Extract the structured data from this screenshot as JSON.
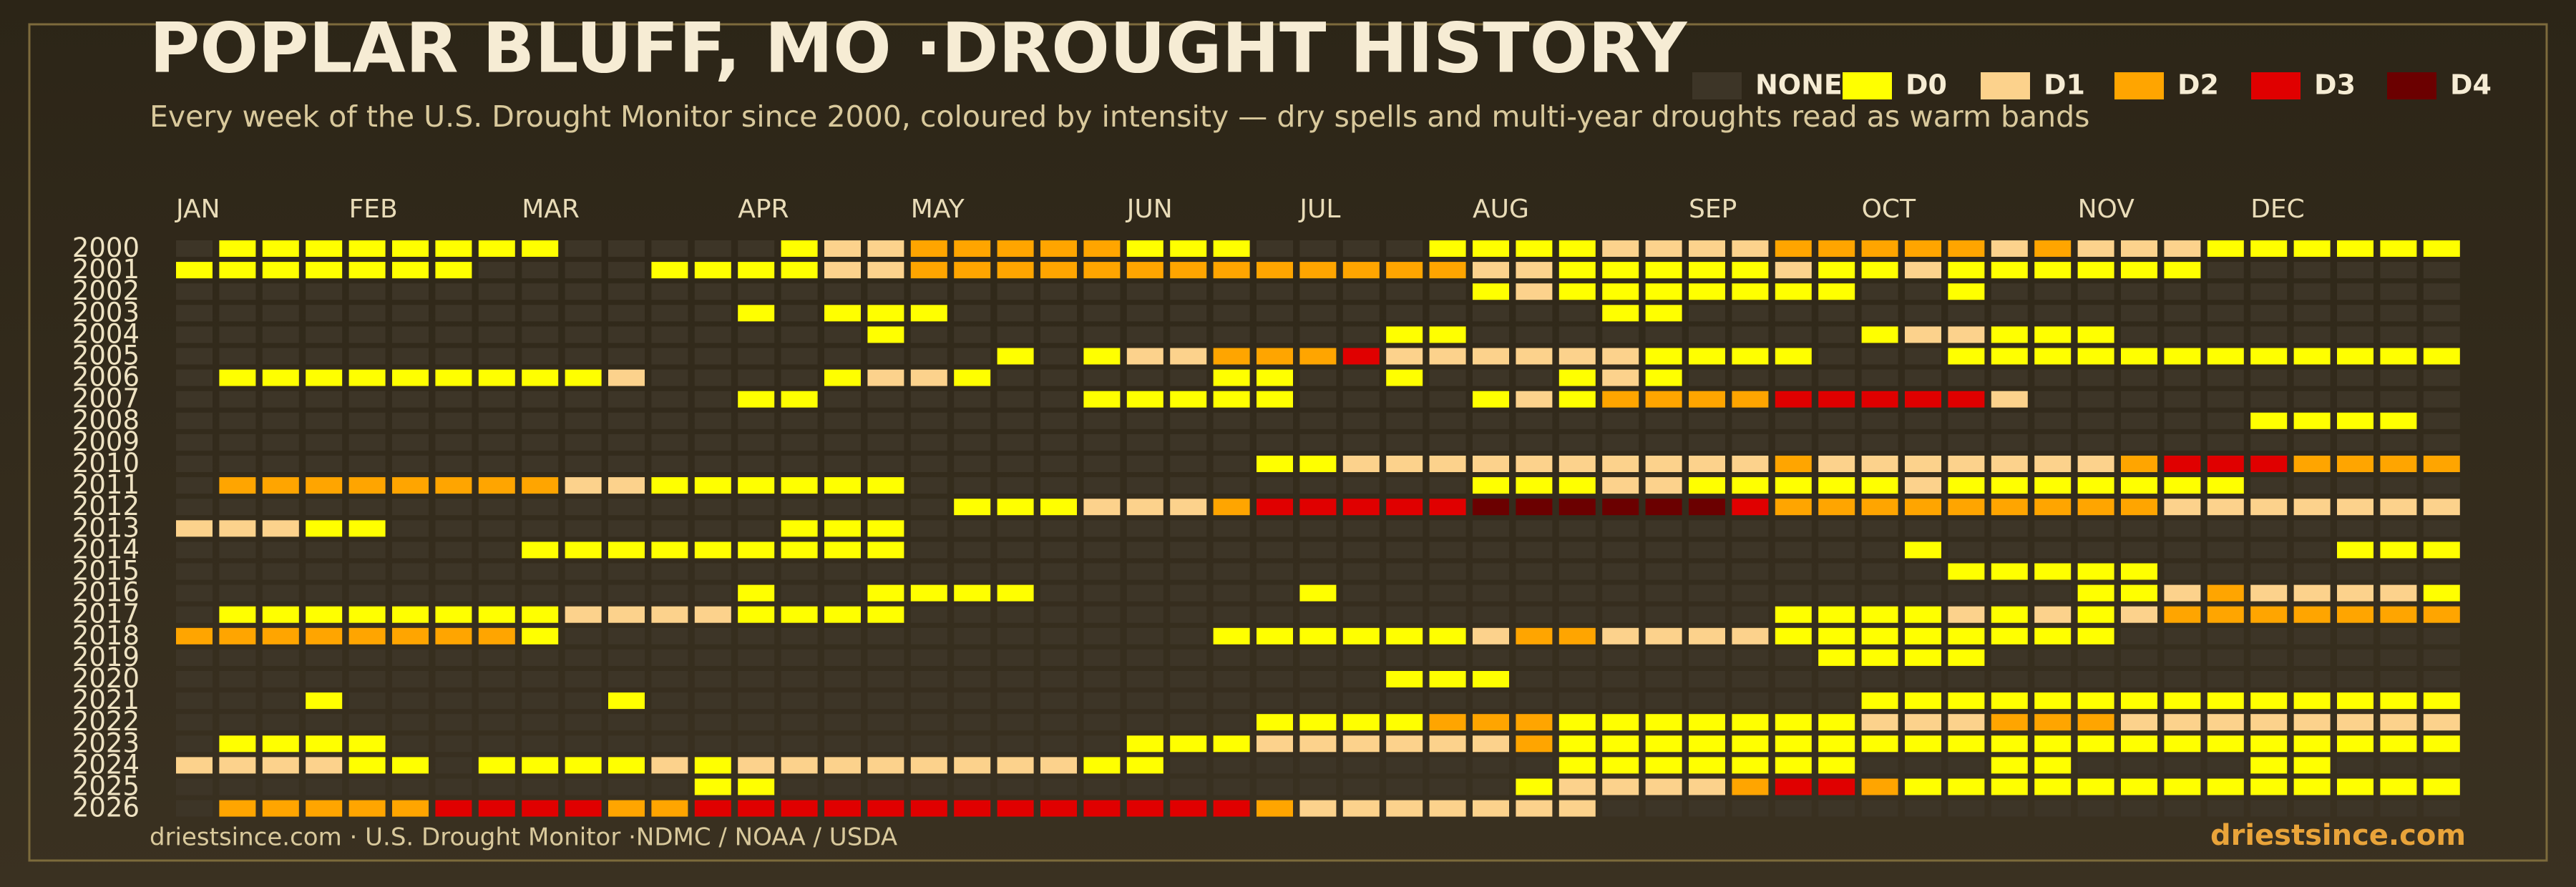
{
  "chart_data": {
    "type": "heatmap",
    "title": "POPLAR BLUFF, MO ·DROUGHT HISTORY",
    "subtitle": "Every week of the U.S. Drought Monitor since 2000, coloured by intensity — dry spells and multi-year droughts read as warm bands",
    "months": [
      "JAN",
      "FEB",
      "MAR",
      "APR",
      "MAY",
      "JUN",
      "JUL",
      "AUG",
      "SEP",
      "OCT",
      "NOV",
      "DEC"
    ],
    "categories": [
      "2000",
      "2001",
      "2002",
      "2003",
      "2004",
      "2005",
      "2006",
      "2007",
      "2008",
      "2009",
      "2010",
      "2011",
      "2012",
      "2013",
      "2014",
      "2015",
      "2016",
      "2017",
      "2018",
      "2019",
      "2020",
      "2021",
      "2022",
      "2023",
      "2024",
      "2025",
      "2026"
    ],
    "levels": [
      {
        "name": "NONE",
        "color": "#3d3527"
      },
      {
        "name": "D0",
        "color": "#ffff00"
      },
      {
        "name": "D1",
        "color": "#fcd28c"
      },
      {
        "name": "D2",
        "color": "#ffa500"
      },
      {
        "name": "D3",
        "color": "#e00000"
      },
      {
        "name": "D4",
        "color": "#6b0000"
      }
    ],
    "values": [
      [
        0,
        1,
        1,
        1,
        1,
        1,
        1,
        1,
        1,
        0,
        0,
        0,
        0,
        0,
        1,
        2,
        2,
        3,
        3,
        3,
        3,
        3,
        1,
        1,
        1,
        0,
        0,
        0,
        0,
        1,
        1,
        1,
        1,
        2,
        2,
        2,
        2,
        3,
        3,
        3,
        3,
        3,
        2,
        3,
        2,
        2,
        2,
        1,
        1,
        1,
        1,
        1,
        1
      ],
      [
        1,
        1,
        1,
        1,
        1,
        1,
        1,
        0,
        0,
        0,
        0,
        1,
        1,
        1,
        1,
        2,
        2,
        3,
        3,
        3,
        3,
        3,
        3,
        3,
        3,
        3,
        3,
        3,
        3,
        3,
        2,
        2,
        1,
        1,
        1,
        1,
        1,
        2,
        1,
        1,
        2,
        1,
        1,
        1,
        1,
        1,
        1,
        0,
        0,
        0,
        0,
        0,
        0
      ],
      [
        0,
        0,
        0,
        0,
        0,
        0,
        0,
        0,
        0,
        0,
        0,
        0,
        0,
        0,
        0,
        0,
        0,
        0,
        0,
        0,
        0,
        0,
        0,
        0,
        0,
        0,
        0,
        0,
        0,
        0,
        1,
        2,
        1,
        1,
        1,
        1,
        1,
        1,
        1,
        0,
        0,
        1,
        0,
        0,
        0,
        0,
        0,
        0,
        0,
        0,
        0,
        0,
        0
      ],
      [
        0,
        0,
        0,
        0,
        0,
        0,
        0,
        0,
        0,
        0,
        0,
        0,
        0,
        1,
        0,
        1,
        1,
        1,
        0,
        0,
        0,
        0,
        0,
        0,
        0,
        0,
        0,
        0,
        0,
        0,
        0,
        0,
        0,
        1,
        1,
        0,
        0,
        0,
        0,
        0,
        0,
        0,
        0,
        0,
        0,
        0,
        0,
        0,
        0,
        0,
        0,
        0,
        0
      ],
      [
        0,
        0,
        0,
        0,
        0,
        0,
        0,
        0,
        0,
        0,
        0,
        0,
        0,
        0,
        0,
        0,
        1,
        0,
        0,
        0,
        0,
        0,
        0,
        0,
        0,
        0,
        0,
        0,
        1,
        1,
        0,
        0,
        0,
        0,
        0,
        0,
        0,
        0,
        0,
        1,
        2,
        2,
        1,
        1,
        1,
        0,
        0,
        0,
        0,
        0,
        0,
        0,
        0
      ],
      [
        0,
        0,
        0,
        0,
        0,
        0,
        0,
        0,
        0,
        0,
        0,
        0,
        0,
        0,
        0,
        0,
        0,
        0,
        0,
        1,
        0,
        1,
        2,
        2,
        3,
        3,
        3,
        4,
        2,
        2,
        2,
        2,
        2,
        2,
        1,
        1,
        1,
        1,
        0,
        0,
        0,
        1,
        1,
        1,
        1,
        1,
        1,
        1,
        1,
        1,
        1,
        1,
        1
      ],
      [
        0,
        1,
        1,
        1,
        1,
        1,
        1,
        1,
        1,
        1,
        2,
        0,
        0,
        0,
        0,
        1,
        2,
        2,
        1,
        0,
        0,
        0,
        0,
        0,
        1,
        1,
        0,
        0,
        1,
        0,
        0,
        0,
        1,
        2,
        1,
        0,
        0,
        0,
        0,
        0,
        0,
        0,
        0,
        0,
        0,
        0,
        0,
        0,
        0,
        0,
        0,
        0,
        0
      ],
      [
        0,
        0,
        0,
        0,
        0,
        0,
        0,
        0,
        0,
        0,
        0,
        0,
        0,
        1,
        1,
        0,
        0,
        0,
        0,
        0,
        0,
        1,
        1,
        1,
        1,
        1,
        0,
        0,
        0,
        0,
        1,
        2,
        1,
        3,
        3,
        3,
        3,
        4,
        4,
        4,
        4,
        4,
        2,
        0,
        0,
        0,
        0,
        0,
        0,
        0,
        0,
        0,
        0
      ],
      [
        0,
        0,
        0,
        0,
        0,
        0,
        0,
        0,
        0,
        0,
        0,
        0,
        0,
        0,
        0,
        0,
        0,
        0,
        0,
        0,
        0,
        0,
        0,
        0,
        0,
        0,
        0,
        0,
        0,
        0,
        0,
        0,
        0,
        0,
        0,
        0,
        0,
        0,
        0,
        0,
        0,
        0,
        0,
        0,
        0,
        0,
        0,
        0,
        1,
        1,
        1,
        1,
        0
      ],
      [
        0,
        0,
        0,
        0,
        0,
        0,
        0,
        0,
        0,
        0,
        0,
        0,
        0,
        0,
        0,
        0,
        0,
        0,
        0,
        0,
        0,
        0,
        0,
        0,
        0,
        0,
        0,
        0,
        0,
        0,
        0,
        0,
        0,
        0,
        0,
        0,
        0,
        0,
        0,
        0,
        0,
        0,
        0,
        0,
        0,
        0,
        0,
        0,
        0,
        0,
        0,
        0,
        0
      ],
      [
        0,
        0,
        0,
        0,
        0,
        0,
        0,
        0,
        0,
        0,
        0,
        0,
        0,
        0,
        0,
        0,
        0,
        0,
        0,
        0,
        0,
        0,
        0,
        0,
        0,
        1,
        1,
        2,
        2,
        2,
        2,
        2,
        2,
        2,
        2,
        2,
        2,
        3,
        2,
        2,
        2,
        2,
        2,
        2,
        2,
        3,
        4,
        4,
        4,
        3,
        3,
        3,
        3
      ],
      [
        0,
        3,
        3,
        3,
        3,
        3,
        3,
        3,
        3,
        2,
        2,
        1,
        1,
        1,
        1,
        1,
        1,
        0,
        0,
        0,
        0,
        0,
        0,
        0,
        0,
        0,
        0,
        0,
        0,
        0,
        1,
        1,
        1,
        2,
        2,
        1,
        1,
        1,
        1,
        1,
        2,
        1,
        1,
        1,
        1,
        1,
        1,
        1,
        0,
        0,
        0,
        0,
        0
      ],
      [
        0,
        0,
        0,
        0,
        0,
        0,
        0,
        0,
        0,
        0,
        0,
        0,
        0,
        0,
        0,
        0,
        0,
        0,
        1,
        1,
        1,
        2,
        2,
        2,
        3,
        4,
        4,
        4,
        4,
        4,
        5,
        5,
        5,
        5,
        5,
        5,
        4,
        3,
        3,
        3,
        3,
        3,
        3,
        3,
        3,
        3,
        2,
        2,
        2,
        2,
        2,
        2,
        2
      ],
      [
        2,
        2,
        2,
        1,
        1,
        0,
        0,
        0,
        0,
        0,
        0,
        0,
        0,
        0,
        1,
        1,
        1,
        0,
        0,
        0,
        0,
        0,
        0,
        0,
        0,
        0,
        0,
        0,
        0,
        0,
        0,
        0,
        0,
        0,
        0,
        0,
        0,
        0,
        0,
        0,
        0,
        0,
        0,
        0,
        0,
        0,
        0,
        0,
        0,
        0,
        0,
        0,
        0
      ],
      [
        0,
        0,
        0,
        0,
        0,
        0,
        0,
        0,
        1,
        1,
        1,
        1,
        1,
        1,
        1,
        1,
        1,
        0,
        0,
        0,
        0,
        0,
        0,
        0,
        0,
        0,
        0,
        0,
        0,
        0,
        0,
        0,
        0,
        0,
        0,
        0,
        0,
        0,
        0,
        0,
        1,
        0,
        0,
        0,
        0,
        0,
        0,
        0,
        0,
        0,
        1,
        1,
        1
      ],
      [
        0,
        0,
        0,
        0,
        0,
        0,
        0,
        0,
        0,
        0,
        0,
        0,
        0,
        0,
        0,
        0,
        0,
        0,
        0,
        0,
        0,
        0,
        0,
        0,
        0,
        0,
        0,
        0,
        0,
        0,
        0,
        0,
        0,
        0,
        0,
        0,
        0,
        0,
        0,
        0,
        0,
        1,
        1,
        1,
        1,
        1,
        0,
        0,
        0,
        0,
        0,
        0,
        0
      ],
      [
        0,
        0,
        0,
        0,
        0,
        0,
        0,
        0,
        0,
        0,
        0,
        0,
        0,
        1,
        0,
        0,
        1,
        1,
        1,
        1,
        0,
        0,
        0,
        0,
        0,
        0,
        1,
        0,
        0,
        0,
        0,
        0,
        0,
        0,
        0,
        0,
        0,
        0,
        0,
        0,
        0,
        0,
        0,
        0,
        1,
        1,
        2,
        3,
        2,
        2,
        2,
        2,
        1
      ],
      [
        0,
        1,
        1,
        1,
        1,
        1,
        1,
        1,
        1,
        2,
        2,
        2,
        2,
        1,
        1,
        1,
        1,
        0,
        0,
        0,
        0,
        0,
        0,
        0,
        0,
        0,
        0,
        0,
        0,
        0,
        0,
        0,
        0,
        0,
        0,
        0,
        0,
        1,
        1,
        1,
        1,
        2,
        1,
        2,
        1,
        2,
        3,
        3,
        3,
        3,
        3,
        3,
        3
      ],
      [
        3,
        3,
        3,
        3,
        3,
        3,
        3,
        3,
        1,
        0,
        0,
        0,
        0,
        0,
        0,
        0,
        0,
        0,
        0,
        0,
        0,
        0,
        0,
        0,
        1,
        1,
        1,
        1,
        1,
        1,
        2,
        3,
        3,
        2,
        2,
        2,
        2,
        1,
        1,
        1,
        1,
        1,
        1,
        1,
        1,
        0,
        0,
        0,
        0,
        0,
        0,
        0,
        0
      ],
      [
        0,
        0,
        0,
        0,
        0,
        0,
        0,
        0,
        0,
        0,
        0,
        0,
        0,
        0,
        0,
        0,
        0,
        0,
        0,
        0,
        0,
        0,
        0,
        0,
        0,
        0,
        0,
        0,
        0,
        0,
        0,
        0,
        0,
        0,
        0,
        0,
        0,
        0,
        1,
        1,
        1,
        1,
        0,
        0,
        0,
        0,
        0,
        0,
        0,
        0,
        0,
        0,
        0
      ],
      [
        0,
        0,
        0,
        0,
        0,
        0,
        0,
        0,
        0,
        0,
        0,
        0,
        0,
        0,
        0,
        0,
        0,
        0,
        0,
        0,
        0,
        0,
        0,
        0,
        0,
        0,
        0,
        0,
        1,
        1,
        1,
        0,
        0,
        0,
        0,
        0,
        0,
        0,
        0,
        0,
        0,
        0,
        0,
        0,
        0,
        0,
        0,
        0,
        0,
        0,
        0,
        0,
        0
      ],
      [
        0,
        0,
        0,
        1,
        0,
        0,
        0,
        0,
        0,
        0,
        1,
        0,
        0,
        0,
        0,
        0,
        0,
        0,
        0,
        0,
        0,
        0,
        0,
        0,
        0,
        0,
        0,
        0,
        0,
        0,
        0,
        0,
        0,
        0,
        0,
        0,
        0,
        0,
        0,
        1,
        1,
        1,
        1,
        1,
        1,
        1,
        1,
        1,
        1,
        1,
        1,
        1,
        1
      ],
      [
        0,
        0,
        0,
        0,
        0,
        0,
        0,
        0,
        0,
        0,
        0,
        0,
        0,
        0,
        0,
        0,
        0,
        0,
        0,
        0,
        0,
        0,
        0,
        0,
        0,
        1,
        1,
        1,
        1,
        3,
        3,
        3,
        1,
        1,
        1,
        1,
        1,
        1,
        1,
        2,
        2,
        2,
        3,
        3,
        3,
        2,
        2,
        2,
        2,
        2,
        2,
        2,
        2
      ],
      [
        0,
        1,
        1,
        1,
        1,
        0,
        0,
        0,
        0,
        0,
        0,
        0,
        0,
        0,
        0,
        0,
        0,
        0,
        0,
        0,
        0,
        0,
        1,
        1,
        1,
        2,
        2,
        2,
        2,
        2,
        2,
        3,
        1,
        1,
        1,
        1,
        1,
        1,
        1,
        1,
        1,
        1,
        1,
        1,
        1,
        1,
        1,
        1,
        1,
        1,
        1,
        1,
        1
      ],
      [
        2,
        2,
        2,
        2,
        1,
        1,
        0,
        1,
        1,
        1,
        1,
        2,
        1,
        2,
        2,
        2,
        2,
        2,
        2,
        2,
        2,
        1,
        1,
        0,
        0,
        0,
        0,
        0,
        0,
        0,
        0,
        0,
        1,
        1,
        1,
        1,
        1,
        1,
        1,
        0,
        0,
        0,
        1,
        1,
        0,
        0,
        0,
        0,
        1,
        1,
        0,
        0,
        0
      ],
      [
        0,
        0,
        0,
        0,
        0,
        0,
        0,
        0,
        0,
        0,
        0,
        0,
        1,
        1,
        0,
        0,
        0,
        0,
        0,
        0,
        0,
        0,
        0,
        0,
        0,
        0,
        0,
        0,
        0,
        0,
        0,
        1,
        2,
        2,
        2,
        2,
        3,
        4,
        4,
        3,
        1,
        1,
        1,
        1,
        1,
        1,
        1,
        1,
        1,
        1,
        1,
        1,
        1
      ],
      [
        0,
        3,
        3,
        3,
        3,
        3,
        4,
        4,
        4,
        4,
        3,
        3,
        4,
        4,
        4,
        4,
        4,
        4,
        4,
        4,
        4,
        4,
        4,
        4,
        4,
        3,
        2,
        2,
        2,
        2,
        2,
        2,
        2,
        0,
        0,
        0,
        0,
        0,
        0,
        0,
        0,
        0,
        0,
        0,
        0,
        0,
        0,
        0,
        0,
        0,
        0,
        0,
        0
      ]
    ],
    "footer": "driestsince.com  · U.S. Drought Monitor ·NDMC / NOAA / USDA",
    "brand": "driestsince.com"
  }
}
